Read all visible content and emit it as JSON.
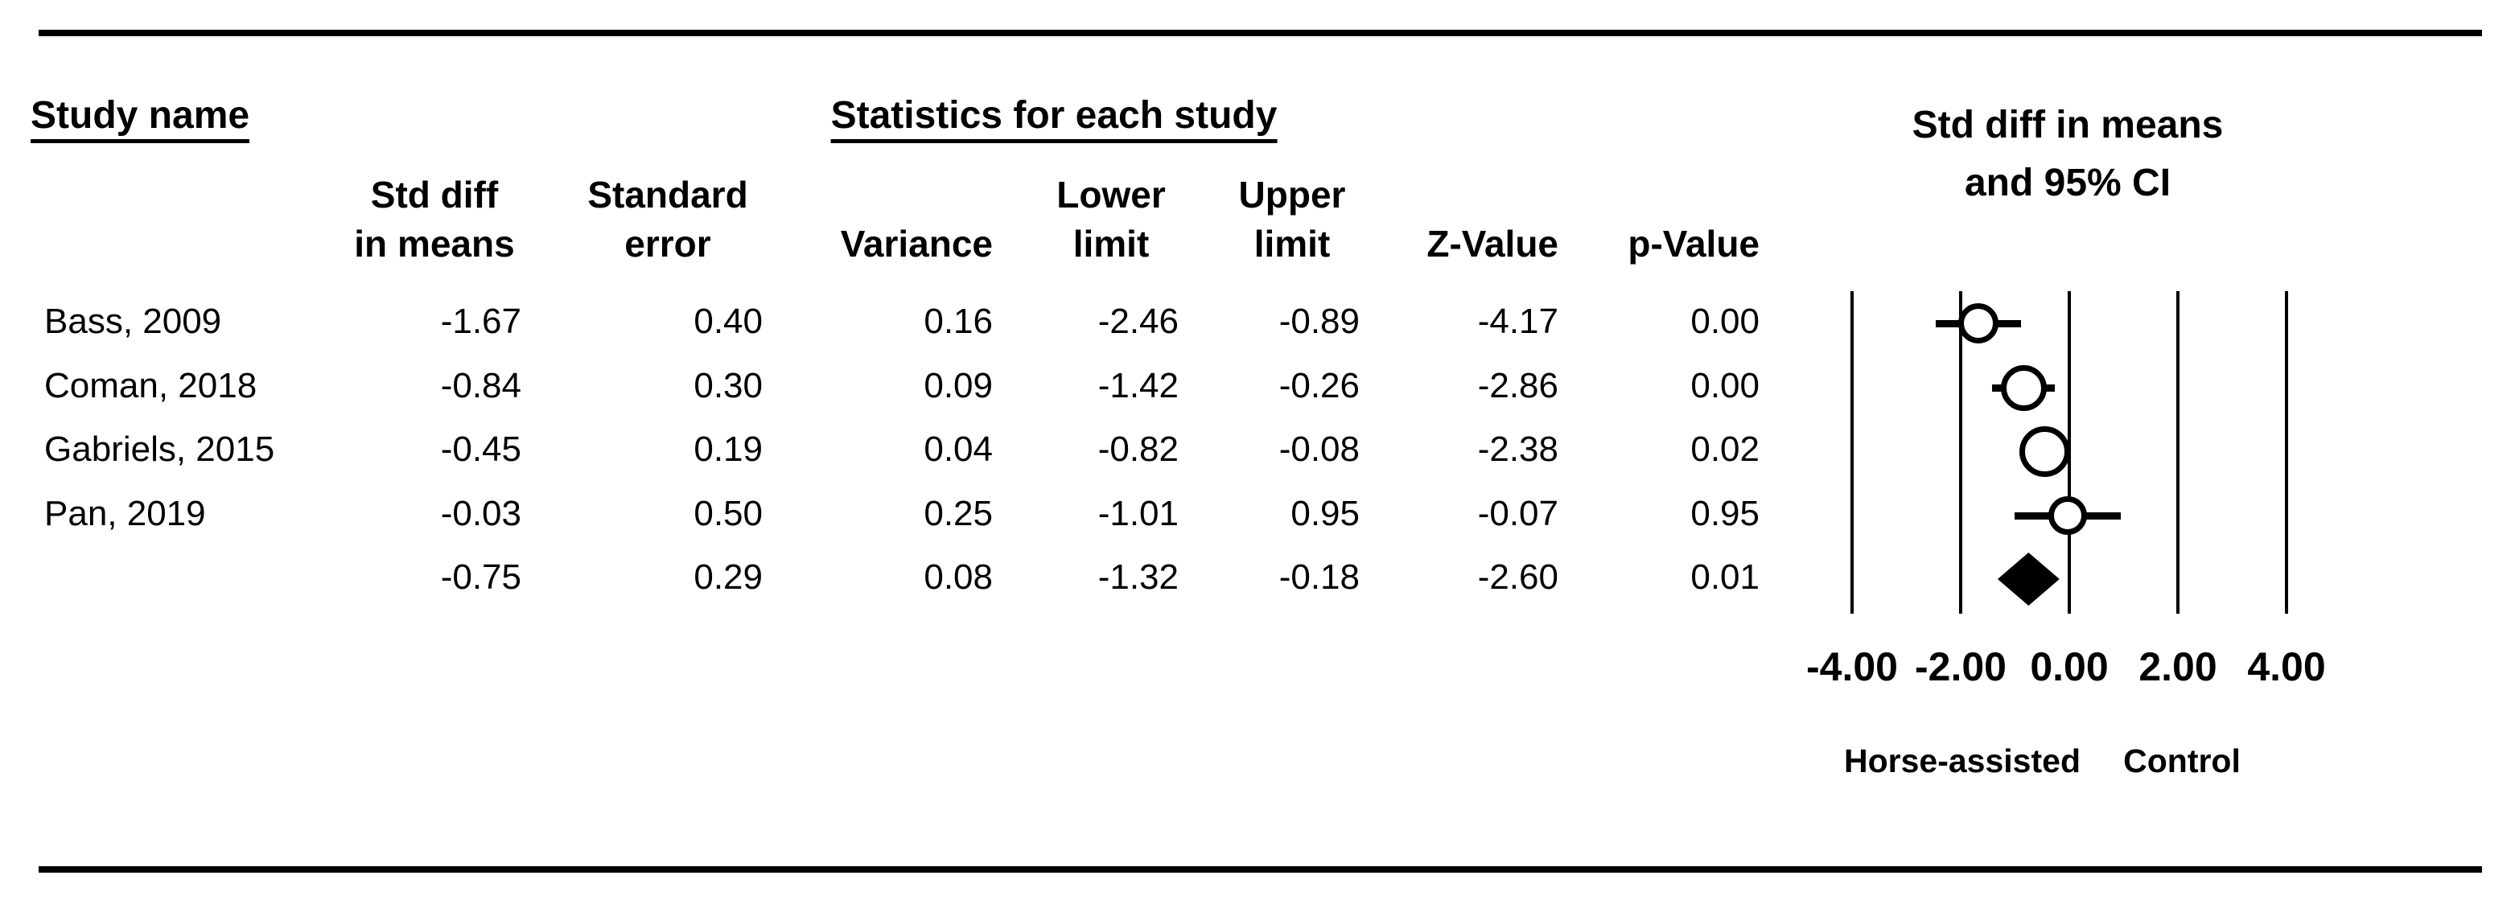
{
  "header": {
    "study_col_title": "Study name",
    "stats_title": "Statistics for each study",
    "plot_title_line1": "Std diff in means",
    "plot_title_line2": "and 95% CI",
    "col_std_diff_l1": "Std diff",
    "col_std_diff_l2": "in means",
    "col_std_err_l1": "Standard",
    "col_std_err_l2": "error",
    "col_variance": "Variance",
    "col_lower_l1": "Lower",
    "col_lower_l2": "limit",
    "col_upper_l1": "Upper",
    "col_upper_l2": "limit",
    "col_z": "Z-Value",
    "col_p": "p-Value"
  },
  "table": {
    "rows": [
      {
        "name": "Bass, 2009",
        "std_diff": "-1.67",
        "std_err": "0.40",
        "variance": "0.16",
        "lower": "-2.46",
        "upper": "-0.89",
        "z": "-4.17",
        "p": "0.00"
      },
      {
        "name": "Coman, 2018",
        "std_diff": "-0.84",
        "std_err": "0.30",
        "variance": "0.09",
        "lower": "-1.42",
        "upper": "-0.26",
        "z": "-2.86",
        "p": "0.00"
      },
      {
        "name": "Gabriels, 2015",
        "std_diff": "-0.45",
        "std_err": "0.19",
        "variance": "0.04",
        "lower": "-0.82",
        "upper": "-0.08",
        "z": "-2.38",
        "p": "0.02"
      },
      {
        "name": "Pan, 2019",
        "std_diff": "-0.03",
        "std_err": "0.50",
        "variance": "0.25",
        "lower": "-1.01",
        "upper": "0.95",
        "z": "-0.07",
        "p": "0.95"
      }
    ],
    "summary_row": {
      "name": "",
      "std_diff": "-0.75",
      "std_err": "0.29",
      "variance": "0.08",
      "lower": "-1.32",
      "upper": "-0.18",
      "z": "-2.60",
      "p": "0.01"
    }
  },
  "axis": {
    "tick_labels": [
      "-4.00",
      "-2.00",
      "0.00",
      "2.00",
      "4.00"
    ],
    "left_group_label": "Horse-assisted",
    "right_group_label": "Control"
  },
  "colors": {
    "foreground": "#000000",
    "background": "#ffffff"
  },
  "chart_data": {
    "type": "forest",
    "title": "Std diff in means and 95% CI",
    "effect_measure": "Std diff in means",
    "x_ticks": [
      -4,
      -2,
      0,
      2,
      4
    ],
    "x_tick_labels": [
      "-4.00",
      "-2.00",
      "0.00",
      "2.00",
      "4.00"
    ],
    "xlim": [
      -4,
      4
    ],
    "favours_left_label": "Horse-assisted",
    "favours_right_label": "Control",
    "studies": [
      {
        "name": "Bass, 2009",
        "std_diff": -1.67,
        "std_err": 0.4,
        "variance": 0.16,
        "lower": -2.46,
        "upper": -0.89,
        "z": -4.17,
        "p": 0.0,
        "marker_diameter": 50
      },
      {
        "name": "Coman, 2018",
        "std_diff": -0.84,
        "std_err": 0.3,
        "variance": 0.09,
        "lower": -1.42,
        "upper": -0.26,
        "z": -2.86,
        "p": 0.0,
        "marker_diameter": 57
      },
      {
        "name": "Gabriels, 2015",
        "std_diff": -0.45,
        "std_err": 0.19,
        "variance": 0.04,
        "lower": -0.82,
        "upper": -0.08,
        "z": -2.38,
        "p": 0.02,
        "marker_diameter": 63
      },
      {
        "name": "Pan, 2019",
        "std_diff": -0.03,
        "std_err": 0.5,
        "variance": 0.25,
        "lower": -1.01,
        "upper": 0.95,
        "z": -0.07,
        "p": 0.95,
        "marker_diameter": 48
      }
    ],
    "summary": {
      "std_diff": -0.75,
      "std_err": 0.29,
      "variance": 0.08,
      "lower": -1.32,
      "upper": -0.18,
      "z": -2.6,
      "p": 0.01,
      "marker": "diamond"
    }
  }
}
